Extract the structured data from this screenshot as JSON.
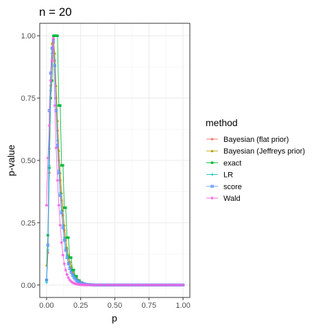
{
  "chart_data": {
    "type": "line",
    "title": "n =  20",
    "xlabel": "p",
    "ylabel": "p-value",
    "xlim": [
      -0.05,
      1.05
    ],
    "ylim": [
      -0.05,
      1.05
    ],
    "x_ticks": [
      0.0,
      0.25,
      0.5,
      0.75,
      1.0
    ],
    "x_tick_labels": [
      "0.00",
      "0.25",
      "0.50",
      "0.75",
      "1.00"
    ],
    "y_ticks": [
      0.0,
      0.25,
      0.5,
      0.75,
      1.0
    ],
    "y_tick_labels": [
      "0.00",
      "0.25",
      "0.50",
      "0.75",
      "1.00"
    ],
    "grid": true,
    "legend_placement": "right",
    "legend_title": "method",
    "x": [
      0.0,
      0.01,
      0.02,
      0.03,
      0.04,
      0.05,
      0.06,
      0.07,
      0.08,
      0.09,
      0.1,
      0.11,
      0.12,
      0.13,
      0.14,
      0.15,
      0.16,
      0.17,
      0.18,
      0.19,
      0.2,
      0.21,
      0.22,
      0.23,
      0.24,
      0.25,
      0.26,
      0.27,
      0.28,
      0.29,
      0.3,
      0.32,
      0.34,
      0.36,
      0.38,
      0.4,
      0.42,
      0.44,
      0.46,
      0.48,
      0.5,
      0.52,
      0.54,
      0.56,
      0.58,
      0.6,
      0.62,
      0.64,
      0.66,
      0.68,
      0.7,
      0.72,
      0.74,
      0.76,
      0.78,
      0.8,
      0.82,
      0.84,
      0.86,
      0.88,
      0.9,
      0.92,
      0.94,
      0.96,
      0.98,
      1.0
    ],
    "series": [
      {
        "name": "Bayesian (flat prior)",
        "color": "#F8766D",
        "marker": "circle",
        "values": [
          0.02,
          0.13,
          0.45,
          0.8,
          0.95,
          0.97,
          0.9,
          0.75,
          0.62,
          0.5,
          0.42,
          0.34,
          0.28,
          0.22,
          0.18,
          0.14,
          0.11,
          0.09,
          0.07,
          0.05,
          0.04,
          0.035,
          0.025,
          0.02,
          0.015,
          0.012,
          0.009,
          0.007,
          0.005,
          0.004,
          0.003,
          0.002,
          0.001,
          0.0005,
          0.0003,
          0.0002,
          0.0001,
          0.0,
          0.0,
          0.0,
          0.0,
          0.0,
          0.0,
          0.0,
          0.0,
          0.0,
          0.0,
          0.0,
          0.0,
          0.0,
          0.0,
          0.0,
          0.0,
          0.0,
          0.0,
          0.0,
          0.0,
          0.0,
          0.0,
          0.0,
          0.0,
          0.0,
          0.0,
          0.0,
          0.0,
          0.0
        ]
      },
      {
        "name": "Bayesian (Jeffreys prior)",
        "color": "#B79F00",
        "marker": "triangle",
        "values": [
          0.08,
          0.2,
          0.55,
          0.85,
          0.97,
          0.99,
          0.93,
          0.8,
          0.66,
          0.54,
          0.45,
          0.37,
          0.3,
          0.24,
          0.19,
          0.15,
          0.12,
          0.095,
          0.075,
          0.058,
          0.045,
          0.036,
          0.028,
          0.022,
          0.017,
          0.013,
          0.01,
          0.008,
          0.006,
          0.004,
          0.003,
          0.002,
          0.001,
          0.0005,
          0.0003,
          0.0002,
          0.0001,
          0.0,
          0.0,
          0.0,
          0.0,
          0.0,
          0.0,
          0.0,
          0.0,
          0.0,
          0.0,
          0.0,
          0.0,
          0.0,
          0.0,
          0.0,
          0.0,
          0.0,
          0.0,
          0.0,
          0.0,
          0.0,
          0.0,
          0.0,
          0.0,
          0.0,
          0.0,
          0.0,
          0.0,
          0.0
        ]
      },
      {
        "name": "exact",
        "color": "#00BA38",
        "marker": "square",
        "values": [
          0.02,
          0.2,
          0.47,
          0.75,
          0.82,
          1.0,
          1.0,
          1.0,
          1.0,
          0.72,
          0.72,
          0.48,
          0.48,
          0.31,
          0.31,
          0.19,
          0.19,
          0.11,
          0.11,
          0.06,
          0.06,
          0.035,
          0.035,
          0.018,
          0.018,
          0.009,
          0.009,
          0.004,
          0.004,
          0.002,
          0.002,
          0.001,
          0.0005,
          0.0002,
          0.0001,
          0.0,
          0.0,
          0.0,
          0.0,
          0.0,
          0.0,
          0.0,
          0.0,
          0.0,
          0.0,
          0.0,
          0.0,
          0.0,
          0.0,
          0.0,
          0.0,
          0.0,
          0.0,
          0.0,
          0.0,
          0.0,
          0.0,
          0.0,
          0.0,
          0.0,
          0.0,
          0.0,
          0.0,
          0.0,
          0.0,
          0.0
        ]
      },
      {
        "name": "LR",
        "color": "#00BFC4",
        "marker": "plus",
        "values": [
          0.01,
          0.14,
          0.48,
          0.78,
          0.93,
          0.97,
          0.88,
          0.72,
          0.58,
          0.46,
          0.37,
          0.3,
          0.24,
          0.19,
          0.15,
          0.12,
          0.09,
          0.07,
          0.055,
          0.043,
          0.033,
          0.026,
          0.02,
          0.015,
          0.012,
          0.009,
          0.007,
          0.005,
          0.004,
          0.003,
          0.002,
          0.001,
          0.0006,
          0.0003,
          0.0002,
          0.0001,
          0.0,
          0.0,
          0.0,
          0.0,
          0.0,
          0.0,
          0.0,
          0.0,
          0.0,
          0.0,
          0.0,
          0.0,
          0.0,
          0.0,
          0.0,
          0.0,
          0.0,
          0.0,
          0.0,
          0.0,
          0.0,
          0.0,
          0.0,
          0.0,
          0.0,
          0.0,
          0.0,
          0.0,
          0.0,
          0.0
        ]
      },
      {
        "name": "score",
        "color": "#619CFF",
        "marker": "square-x",
        "values": [
          0.02,
          0.16,
          0.7,
          0.85,
          0.95,
          0.98,
          0.88,
          0.7,
          0.56,
          0.45,
          0.36,
          0.29,
          0.23,
          0.18,
          0.14,
          0.11,
          0.085,
          0.066,
          0.051,
          0.04,
          0.031,
          0.024,
          0.018,
          0.014,
          0.011,
          0.008,
          0.006,
          0.0045,
          0.0034,
          0.0025,
          0.0018,
          0.001,
          0.0005,
          0.0003,
          0.0001,
          0.0,
          0.0,
          0.0,
          0.0,
          0.0,
          0.0,
          0.0,
          0.0,
          0.0,
          0.0,
          0.0,
          0.0,
          0.0,
          0.0,
          0.0,
          0.0,
          0.0,
          0.0,
          0.0,
          0.0,
          0.0,
          0.0,
          0.0,
          0.0,
          0.0,
          0.0,
          0.0,
          0.0,
          0.0,
          0.0,
          0.0
        ]
      },
      {
        "name": "Wald",
        "color": "#F564E3",
        "marker": "asterisk",
        "values": [
          0.32,
          0.51,
          0.64,
          0.82,
          0.9,
          0.99,
          0.72,
          0.55,
          0.42,
          0.32,
          0.24,
          0.17,
          0.12,
          0.085,
          0.06,
          0.042,
          0.029,
          0.02,
          0.014,
          0.01,
          0.007,
          0.005,
          0.0035,
          0.0025,
          0.0017,
          0.0012,
          0.0008,
          0.0005,
          0.0003,
          0.0002,
          0.0001,
          0.0,
          0.0,
          0.0,
          0.0,
          0.0,
          0.0,
          0.0,
          0.0,
          0.0,
          0.0,
          0.0,
          0.0,
          0.0,
          0.0,
          0.0,
          0.0,
          0.0,
          0.0,
          0.0,
          0.0,
          0.0,
          0.0,
          0.0,
          0.0,
          0.0,
          0.0,
          0.0,
          0.0,
          0.0,
          0.0,
          0.0,
          0.0,
          0.0,
          0.0,
          0.0
        ]
      }
    ]
  }
}
